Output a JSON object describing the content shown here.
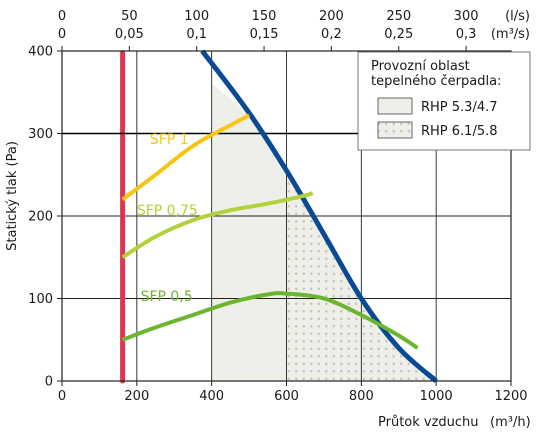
{
  "chart_data": {
    "type": "line",
    "xlabel": "Průtok vzduchu",
    "xunit": "(m³/h)",
    "ylabel": "Statický tlak (Pa)",
    "xlim": [
      0,
      1200
    ],
    "ylim": [
      0,
      400
    ],
    "x_ticks": [
      "0",
      "200",
      "400",
      "600",
      "800",
      "1000",
      "1200"
    ],
    "y_ticks": [
      "0",
      "100",
      "200",
      "300",
      "400"
    ],
    "grid": true,
    "top_axis_ls": {
      "unit": "(l/s)",
      "ticks": [
        {
          "label": "0",
          "m3h": 0
        },
        {
          "label": "50",
          "m3h": 180
        },
        {
          "label": "100",
          "m3h": 360
        },
        {
          "label": "150",
          "m3h": 540
        },
        {
          "label": "200",
          "m3h": 720
        },
        {
          "label": "250",
          "m3h": 900
        },
        {
          "label": "300",
          "m3h": 1080
        }
      ]
    },
    "top_axis_m3s": {
      "unit": "(m³/s)",
      "ticks": [
        {
          "label": "0",
          "m3h": 0
        },
        {
          "label": "0,05",
          "m3h": 180
        },
        {
          "label": "0,1",
          "m3h": 360
        },
        {
          "label": "0,15",
          "m3h": 540
        },
        {
          "label": "0,2",
          "m3h": 720
        },
        {
          "label": "0,25",
          "m3h": 900
        },
        {
          "label": "0,3",
          "m3h": 1080
        }
      ]
    },
    "reference_lines": [
      {
        "type": "vertical",
        "x": 162,
        "y_range": [
          0,
          398
        ],
        "color": "#e0334f"
      },
      {
        "type": "horizontal",
        "y": 300,
        "x_range": [
          0,
          790
        ],
        "color": "#000000"
      }
    ],
    "series": [
      {
        "name": "",
        "color": "#0a4a94",
        "points": [
          [
            375,
            400
          ],
          [
            500,
            325
          ],
          [
            600,
            255
          ],
          [
            700,
            178
          ],
          [
            800,
            100
          ],
          [
            900,
            40
          ],
          [
            1000,
            0
          ]
        ]
      },
      {
        "name": "SFP 1",
        "color": "#f7c512",
        "points": [
          [
            162,
            220
          ],
          [
            250,
            250
          ],
          [
            350,
            285
          ],
          [
            450,
            310
          ],
          [
            500,
            322
          ]
        ]
      },
      {
        "name": "SFP 0,75",
        "color": "#b2d13a",
        "points": [
          [
            162,
            150
          ],
          [
            250,
            175
          ],
          [
            350,
            195
          ],
          [
            450,
            207
          ],
          [
            550,
            215
          ],
          [
            650,
            225
          ],
          [
            670,
            228
          ]
        ]
      },
      {
        "name": "SFP 0,5",
        "color": "#6bb52f",
        "points": [
          [
            162,
            50
          ],
          [
            250,
            65
          ],
          [
            350,
            80
          ],
          [
            450,
            95
          ],
          [
            550,
            105
          ],
          [
            600,
            106
          ],
          [
            700,
            100
          ],
          [
            800,
            80
          ],
          [
            900,
            55
          ],
          [
            950,
            40
          ]
        ]
      }
    ],
    "areas": [
      {
        "name": "RHP 5.3/4.7",
        "fill": "#eeefe9",
        "polygon": [
          [
            400,
            0
          ],
          [
            1000,
            0
          ],
          [
            900,
            40
          ],
          [
            800,
            100
          ],
          [
            700,
            178
          ],
          [
            600,
            255
          ],
          [
            525,
            315
          ],
          [
            400,
            360
          ]
        ]
      },
      {
        "name": "RHP 6.1/5.8",
        "fill": "dots",
        "polygon": [
          [
            600,
            0
          ],
          [
            1000,
            0
          ],
          [
            900,
            40
          ],
          [
            800,
            100
          ],
          [
            700,
            178
          ],
          [
            600,
            255
          ]
        ]
      }
    ],
    "curve_labels": [
      {
        "text": "SFP 1",
        "x": 235,
        "y": 287,
        "color": "#f7c512"
      },
      {
        "text": "SFP 0,75",
        "x": 200,
        "y": 201,
        "color": "#b2d13a"
      },
      {
        "text": "SFP 0,5",
        "x": 210,
        "y": 97,
        "color": "#6bb52f"
      }
    ],
    "legend": {
      "position": "top-right",
      "title_line1": "Provozní oblast",
      "title_line2": "tepelného čerpadla:",
      "items": [
        {
          "label": "RHP 5.3/4.7",
          "fill": "plain"
        },
        {
          "label": "RHP 6.1/5.8",
          "fill": "dots"
        }
      ]
    }
  }
}
